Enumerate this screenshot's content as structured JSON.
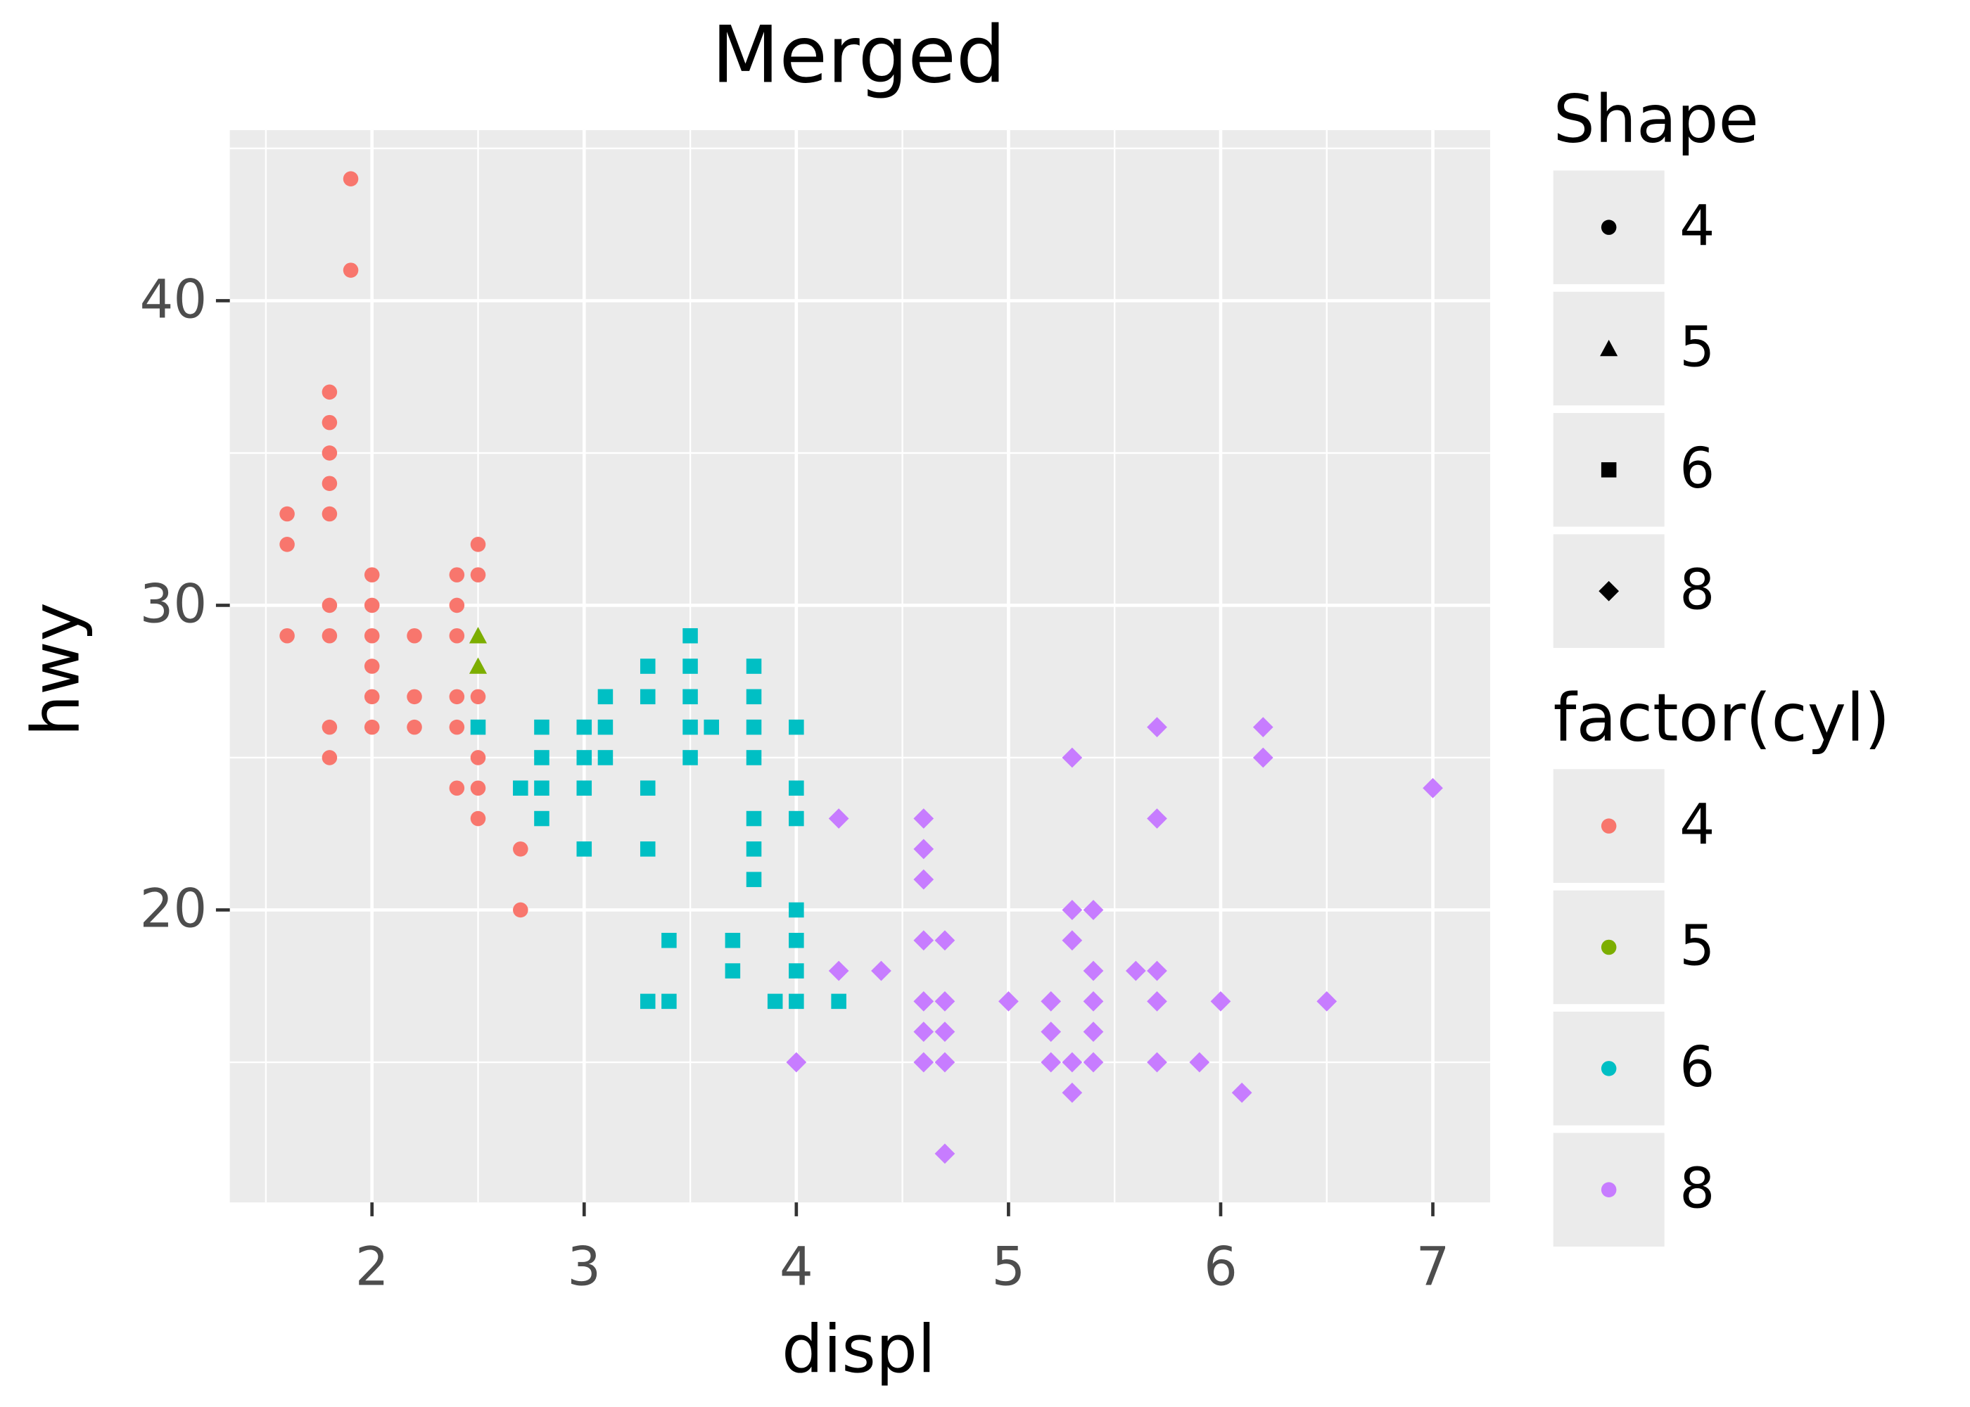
{
  "chart_data": {
    "type": "scatter",
    "title": "Merged",
    "xlabel": "displ",
    "ylabel": "hwy",
    "shape_legend_title": "Shape",
    "color_legend_title": "factor(cyl)",
    "xlim": [
      1.33,
      7.27
    ],
    "ylim": [
      10.4,
      45.6
    ],
    "xticks": [
      2,
      3,
      4,
      5,
      6,
      7
    ],
    "yticks": [
      20,
      30,
      40
    ],
    "xminor_ticks": [
      1.5,
      2.5,
      3.5,
      4.5,
      5.5,
      6.5
    ],
    "yminor_ticks": [
      15,
      25,
      35,
      45
    ],
    "grid": true,
    "series": [
      {
        "name": "4",
        "color": "#F8766D",
        "shape": "circle",
        "x": [
          1.6,
          1.6,
          1.6,
          1.8,
          1.8,
          1.8,
          1.8,
          1.8,
          1.8,
          1.8,
          1.8,
          1.8,
          1.9,
          1.9,
          2.0,
          2.0,
          2.0,
          2.0,
          2.0,
          2.0,
          2.2,
          2.2,
          2.2,
          2.4,
          2.4,
          2.4,
          2.4,
          2.4,
          2.4,
          2.5,
          2.5,
          2.5,
          2.5,
          2.5,
          2.5,
          2.7,
          2.7
        ],
        "values": [
          33,
          32,
          29,
          37,
          36,
          35,
          34,
          33,
          30,
          29,
          26,
          25,
          44,
          41,
          31,
          30,
          29,
          28,
          27,
          26,
          29,
          27,
          26,
          31,
          30,
          29,
          27,
          26,
          24,
          32,
          31,
          27,
          25,
          24,
          23,
          22,
          20
        ]
      },
      {
        "name": "5",
        "color": "#7CAE00",
        "shape": "triangle",
        "x": [
          2.5,
          2.5
        ],
        "values": [
          29,
          28
        ]
      },
      {
        "name": "6",
        "color": "#00BFC4",
        "shape": "square",
        "x": [
          2.5,
          2.7,
          2.8,
          2.8,
          2.8,
          2.8,
          3.0,
          3.0,
          3.0,
          3.0,
          3.1,
          3.1,
          3.1,
          3.3,
          3.3,
          3.3,
          3.3,
          3.3,
          3.4,
          3.4,
          3.5,
          3.5,
          3.5,
          3.5,
          3.5,
          3.6,
          3.7,
          3.7,
          3.8,
          3.8,
          3.8,
          3.8,
          3.8,
          3.8,
          3.8,
          3.9,
          4.0,
          4.0,
          4.0,
          4.0,
          4.0,
          4.0,
          4.0,
          4.2
        ],
        "values": [
          26,
          24,
          26,
          25,
          24,
          23,
          26,
          25,
          24,
          22,
          27,
          26,
          25,
          28,
          27,
          24,
          22,
          17,
          19,
          17,
          29,
          28,
          27,
          26,
          25,
          26,
          19,
          18,
          28,
          27,
          26,
          25,
          23,
          22,
          21,
          17,
          26,
          24,
          23,
          20,
          19,
          18,
          17,
          17
        ]
      },
      {
        "name": "8",
        "color": "#C77CFF",
        "shape": "diamond",
        "x": [
          4.0,
          4.2,
          4.2,
          4.4,
          4.6,
          4.6,
          4.6,
          4.6,
          4.6,
          4.6,
          4.6,
          4.7,
          4.7,
          4.7,
          4.7,
          4.7,
          5.0,
          5.2,
          5.2,
          5.2,
          5.3,
          5.3,
          5.3,
          5.3,
          5.3,
          5.4,
          5.4,
          5.4,
          5.4,
          5.4,
          5.6,
          5.7,
          5.7,
          5.7,
          5.7,
          5.7,
          5.9,
          6.0,
          6.1,
          6.2,
          6.2,
          6.5,
          7.0
        ],
        "values": [
          15,
          23,
          18,
          18,
          23,
          22,
          21,
          19,
          17,
          16,
          15,
          19,
          17,
          16,
          15,
          12,
          17,
          17,
          16,
          15,
          25,
          20,
          19,
          15,
          14,
          20,
          18,
          17,
          16,
          15,
          18,
          26,
          23,
          18,
          17,
          15,
          15,
          17,
          14,
          26,
          25,
          17,
          24
        ]
      }
    ]
  }
}
